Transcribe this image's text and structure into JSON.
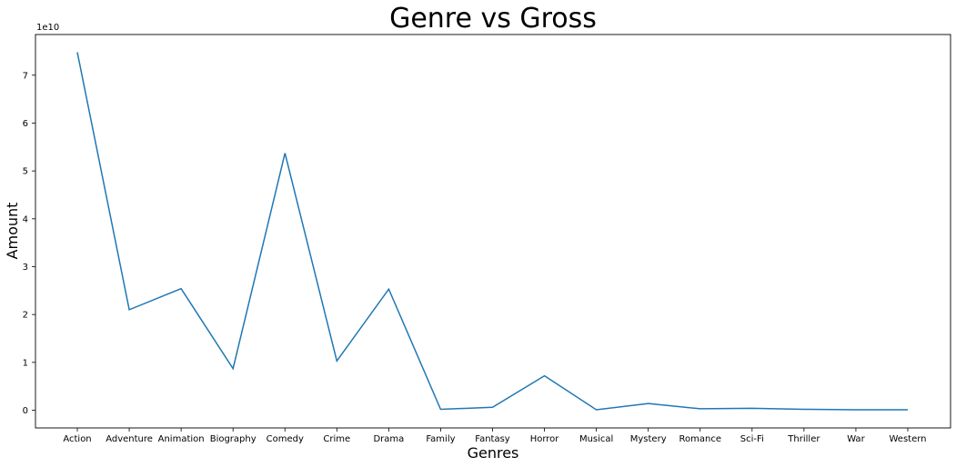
{
  "chart_data": {
    "type": "line",
    "title": "Genre vs Gross",
    "xlabel": "Genres",
    "ylabel": "Amount",
    "offset_label": "1e10",
    "categories": [
      "Action",
      "Adventure",
      "Animation",
      "Biography",
      "Comedy",
      "Crime",
      "Drama",
      "Family",
      "Fantasy",
      "Horror",
      "Musical",
      "Mystery",
      "Romance",
      "Sci-Fi",
      "Thriller",
      "War",
      "Western"
    ],
    "series": [
      {
        "values": [
          7.48,
          2.1,
          2.54,
          0.87,
          5.37,
          1.03,
          2.53,
          0.02,
          0.06,
          0.72,
          0.01,
          0.14,
          0.03,
          0.04,
          0.02,
          0.01,
          0.01
        ],
        "color": "#1f77b4"
      }
    ],
    "yticks": [
      0,
      1,
      2,
      3,
      4,
      5,
      6,
      7
    ],
    "ylim": [
      -0.37,
      7.85
    ],
    "grid": false,
    "legend": "none"
  }
}
